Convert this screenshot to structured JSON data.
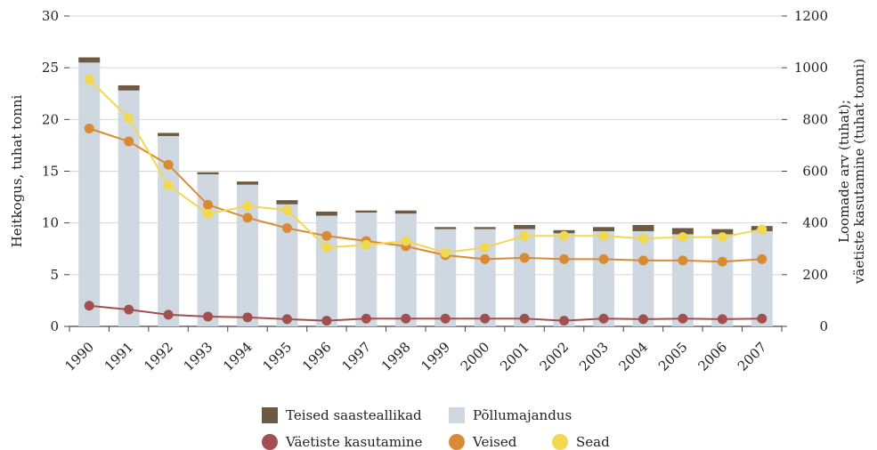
{
  "chart_data": {
    "type": "bar",
    "title": "",
    "categories": [
      "1990",
      "1991",
      "1992",
      "1993",
      "1994",
      "1995",
      "1996",
      "1997",
      "1998",
      "1999",
      "2000",
      "2001",
      "2002",
      "2003",
      "2004",
      "2005",
      "2006",
      "2007"
    ],
    "ylabel_left": "Heitkogus, tuhat tonni",
    "ylabel_right": "Loomade arv (tuhat); väetiste kasutamine (tuhat tonni)",
    "ylim_left": [
      0,
      30
    ],
    "yticks_left": [
      "0",
      "5",
      "10",
      "15",
      "20",
      "25",
      "30"
    ],
    "ylim_right": [
      0,
      1200
    ],
    "yticks_right": [
      "0",
      "200",
      "400",
      "600",
      "800",
      "1000",
      "1200"
    ],
    "grid": true,
    "legend_position": "bottom",
    "bar_series": [
      {
        "name": "Põllumajandus",
        "axis": "left",
        "color": "#cfd8e0",
        "values": [
          25.5,
          22.8,
          18.4,
          14.7,
          13.7,
          11.8,
          10.7,
          11.0,
          10.9,
          9.4,
          9.4,
          9.4,
          9.0,
          9.2,
          9.2,
          8.9,
          8.9,
          9.2
        ]
      },
      {
        "name": "Teised saasteallikad",
        "axis": "left",
        "color": "#6e5a43",
        "values": [
          0.5,
          0.5,
          0.3,
          0.2,
          0.3,
          0.4,
          0.4,
          0.2,
          0.3,
          0.2,
          0.2,
          0.4,
          0.3,
          0.4,
          0.6,
          0.6,
          0.5,
          0.5
        ]
      }
    ],
    "line_series": [
      {
        "name": "Väetiste kasutamine",
        "axis": "right",
        "color": "#a34f4f",
        "values": [
          80,
          65,
          45,
          38,
          35,
          28,
          22,
          30,
          30,
          30,
          30,
          30,
          22,
          30,
          28,
          30,
          28,
          30
        ]
      },
      {
        "name": "Veised",
        "axis": "right",
        "color": "#d98b34",
        "values": [
          765,
          715,
          625,
          470,
          420,
          380,
          350,
          330,
          310,
          275,
          260,
          265,
          260,
          260,
          255,
          255,
          250,
          260
        ]
      },
      {
        "name": "Sead",
        "axis": "right",
        "color": "#f0d850",
        "values": [
          955,
          805,
          545,
          435,
          465,
          450,
          305,
          315,
          330,
          285,
          305,
          350,
          350,
          350,
          340,
          345,
          345,
          375
        ]
      }
    ]
  },
  "legend": {
    "other_sources": "Teised saasteallikad",
    "agriculture": "Põllumajandus",
    "fertilizer": "Väetiste kasutamine",
    "cattle": "Veised",
    "pigs": "Sead"
  }
}
